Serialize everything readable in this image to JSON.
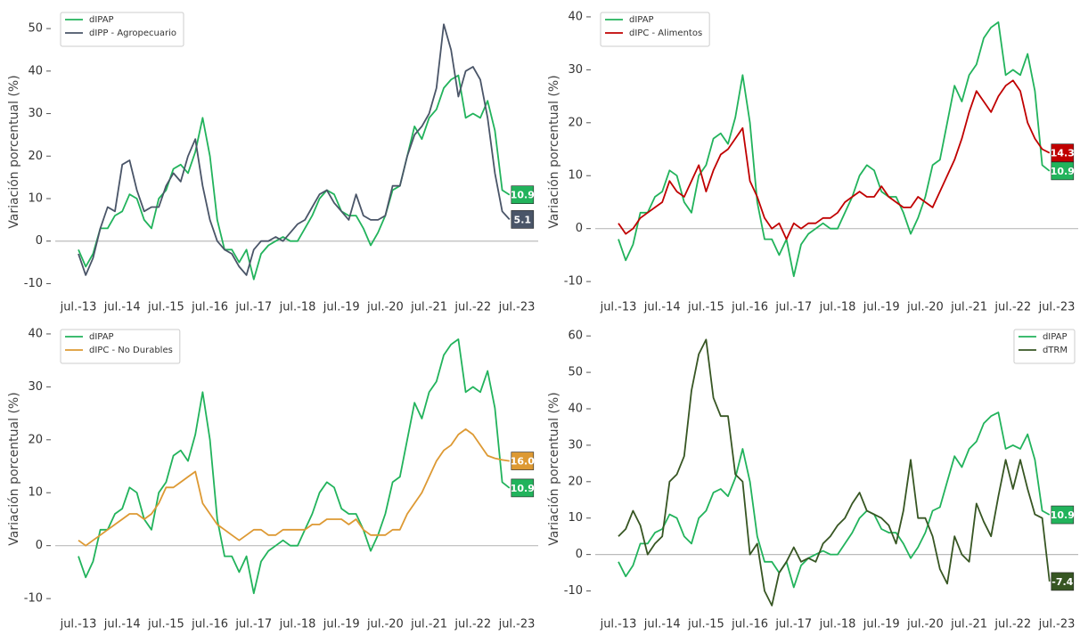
{
  "chart_data": [
    {
      "type": "line",
      "y_label": "Variación porcentual (%)",
      "legend": "upper left",
      "categories": [
        "jul.-13",
        null,
        null,
        null,
        null,
        null,
        "jul.-14",
        null,
        null,
        null,
        null,
        null,
        "jul.-15",
        null,
        null,
        null,
        null,
        null,
        "jul.-16",
        null,
        null,
        null,
        null,
        null,
        "jul.-17",
        null,
        null,
        null,
        null,
        null,
        "jul.-18",
        null,
        null,
        null,
        null,
        null,
        "jul.-19",
        null,
        null,
        null,
        null,
        null,
        "jul.-20",
        null,
        null,
        null,
        null,
        null,
        "jul.-21",
        null,
        null,
        null,
        null,
        null,
        "jul.-22",
        null,
        null,
        null,
        null,
        null,
        "jul.-23"
      ],
      "ylim": [
        -12,
        54
      ],
      "yticks": [
        -10,
        0,
        10,
        20,
        30,
        40,
        50
      ],
      "series": [
        {
          "name": "dIPAP",
          "color": "#22b35c",
          "end_label": "10.9",
          "values": [
            -2,
            -6,
            -3,
            3,
            3,
            6,
            7,
            11,
            10,
            5,
            3,
            10,
            12,
            17,
            18,
            16,
            21,
            29,
            20,
            5,
            -2,
            -2,
            -5,
            -2,
            -9,
            -3,
            -1,
            0,
            1,
            0,
            0,
            3,
            6,
            10,
            12,
            11,
            7,
            6,
            6,
            3,
            -1,
            2,
            6,
            12,
            13,
            20,
            27,
            24,
            29,
            31,
            36,
            38,
            39,
            29,
            30,
            29,
            33,
            26,
            12,
            10.9,
            null
          ]
        },
        {
          "name": "dIPP - Agropecuario",
          "color": "#4a5568",
          "end_label": "5.1",
          "values": [
            -3,
            -8,
            -4,
            3,
            8,
            7,
            18,
            19,
            12,
            7,
            8,
            8,
            13,
            16,
            14,
            20,
            24,
            13,
            5,
            0,
            -2,
            -3,
            -6,
            -8,
            -2,
            0,
            0,
            1,
            0,
            2,
            4,
            5,
            8,
            11,
            12,
            9,
            7,
            5,
            11,
            6,
            5,
            5,
            6,
            13,
            13,
            20,
            25,
            27,
            30,
            36,
            51,
            45,
            34,
            40,
            41,
            38,
            29,
            16,
            7,
            5.1,
            null
          ]
        }
      ]
    },
    {
      "type": "line",
      "y_label": "Variación porcentual (%)",
      "legend": "upper left",
      "categories": [
        "jul.-13",
        null,
        null,
        null,
        null,
        null,
        "jul.-14",
        null,
        null,
        null,
        null,
        null,
        "jul.-15",
        null,
        null,
        null,
        null,
        null,
        "jul.-16",
        null,
        null,
        null,
        null,
        null,
        "jul.-17",
        null,
        null,
        null,
        null,
        null,
        "jul.-18",
        null,
        null,
        null,
        null,
        null,
        "jul.-19",
        null,
        null,
        null,
        null,
        null,
        "jul.-20",
        null,
        null,
        null,
        null,
        null,
        "jul.-21",
        null,
        null,
        null,
        null,
        null,
        "jul.-22",
        null,
        null,
        null,
        null,
        null,
        "jul.-23"
      ],
      "ylim": [
        -12,
        41
      ],
      "yticks": [
        -10,
        0,
        10,
        20,
        30,
        40
      ],
      "series": [
        {
          "name": "dIPAP",
          "color": "#22b35c",
          "end_label": "10.9",
          "values": [
            -2,
            -6,
            -3,
            3,
            3,
            6,
            7,
            11,
            10,
            5,
            3,
            10,
            12,
            17,
            18,
            16,
            21,
            29,
            20,
            5,
            -2,
            -2,
            -5,
            -2,
            -9,
            -3,
            -1,
            0,
            1,
            0,
            0,
            3,
            6,
            10,
            12,
            11,
            7,
            6,
            6,
            3,
            -1,
            2,
            6,
            12,
            13,
            20,
            27,
            24,
            29,
            31,
            36,
            38,
            39,
            29,
            30,
            29,
            33,
            26,
            12,
            10.9,
            null
          ]
        },
        {
          "name": "dIPC - Alimentos",
          "color": "#c00000",
          "end_label": "14.3",
          "values": [
            1,
            -1,
            0,
            2,
            3,
            4,
            5,
            9,
            7,
            6,
            9,
            12,
            7,
            11,
            14,
            15,
            17,
            19,
            9,
            6,
            2,
            0,
            1,
            -2,
            1,
            0,
            1,
            1,
            2,
            2,
            3,
            5,
            6,
            7,
            6,
            6,
            8,
            6,
            5,
            4,
            4,
            6,
            5,
            4,
            7,
            10,
            13,
            17,
            22,
            26,
            24,
            22,
            25,
            27,
            28,
            26,
            20,
            17,
            15,
            14.3,
            null
          ]
        }
      ]
    },
    {
      "type": "line",
      "y_label": "Variación porcentual (%)",
      "legend": "upper left",
      "categories": [
        "jul.-13",
        null,
        null,
        null,
        null,
        null,
        "jul.-14",
        null,
        null,
        null,
        null,
        null,
        "jul.-15",
        null,
        null,
        null,
        null,
        null,
        "jul.-16",
        null,
        null,
        null,
        null,
        null,
        "jul.-17",
        null,
        null,
        null,
        null,
        null,
        "jul.-18",
        null,
        null,
        null,
        null,
        null,
        "jul.-19",
        null,
        null,
        null,
        null,
        null,
        "jul.-20",
        null,
        null,
        null,
        null,
        null,
        "jul.-21",
        null,
        null,
        null,
        null,
        null,
        "jul.-22",
        null,
        null,
        null,
        null,
        null,
        "jul.-23"
      ],
      "ylim": [
        -12,
        41
      ],
      "yticks": [
        -10,
        0,
        10,
        20,
        30,
        40
      ],
      "series": [
        {
          "name": "dIPAP",
          "color": "#22b35c",
          "end_label": "10.9",
          "values": [
            -2,
            -6,
            -3,
            3,
            3,
            6,
            7,
            11,
            10,
            5,
            3,
            10,
            12,
            17,
            18,
            16,
            21,
            29,
            20,
            5,
            -2,
            -2,
            -5,
            -2,
            -9,
            -3,
            -1,
            0,
            1,
            0,
            0,
            3,
            6,
            10,
            12,
            11,
            7,
            6,
            6,
            3,
            -1,
            2,
            6,
            12,
            13,
            20,
            27,
            24,
            29,
            31,
            36,
            38,
            39,
            29,
            30,
            29,
            33,
            26,
            12,
            10.9,
            null
          ]
        },
        {
          "name": "dIPC - No Durables",
          "color": "#dd9933",
          "end_label": "16.0",
          "values": [
            1,
            0,
            1,
            2,
            3,
            4,
            5,
            6,
            6,
            5,
            6,
            8,
            11,
            11,
            12,
            13,
            14,
            8,
            6,
            4,
            3,
            2,
            1,
            2,
            3,
            3,
            2,
            2,
            3,
            3,
            3,
            3,
            4,
            4,
            5,
            5,
            5,
            4,
            5,
            3,
            2,
            2,
            2,
            3,
            3,
            6,
            8,
            10,
            13,
            16,
            18,
            19,
            21,
            22,
            21,
            19,
            17,
            16.5,
            16.2,
            16,
            null
          ]
        }
      ]
    },
    {
      "type": "line",
      "y_label": "Variación porcentual (%)",
      "legend": "upper right",
      "categories": [
        "jul.-13",
        null,
        null,
        null,
        null,
        null,
        "jul.-14",
        null,
        null,
        null,
        null,
        null,
        "jul.-15",
        null,
        null,
        null,
        null,
        null,
        "jul.-16",
        null,
        null,
        null,
        null,
        null,
        "jul.-17",
        null,
        null,
        null,
        null,
        null,
        "jul.-18",
        null,
        null,
        null,
        null,
        null,
        "jul.-19",
        null,
        null,
        null,
        null,
        null,
        "jul.-20",
        null,
        null,
        null,
        null,
        null,
        "jul.-21",
        null,
        null,
        null,
        null,
        null,
        "jul.-22",
        null,
        null,
        null,
        null,
        null,
        "jul.-23"
      ],
      "ylim": [
        -15,
        62
      ],
      "yticks": [
        -10,
        0,
        10,
        20,
        30,
        40,
        50,
        60
      ],
      "series": [
        {
          "name": "dIPAP",
          "color": "#22b35c",
          "end_label": "10.9",
          "values": [
            -2,
            -6,
            -3,
            3,
            3,
            6,
            7,
            11,
            10,
            5,
            3,
            10,
            12,
            17,
            18,
            16,
            21,
            29,
            20,
            5,
            -2,
            -2,
            -5,
            -2,
            -9,
            -3,
            -1,
            0,
            1,
            0,
            0,
            3,
            6,
            10,
            12,
            11,
            7,
            6,
            6,
            3,
            -1,
            2,
            6,
            12,
            13,
            20,
            27,
            24,
            29,
            31,
            36,
            38,
            39,
            29,
            30,
            29,
            33,
            26,
            12,
            10.9,
            null
          ]
        },
        {
          "name": "dTRM",
          "color": "#375623",
          "end_label": "-7.4",
          "values": [
            5,
            7,
            12,
            8,
            0,
            3,
            5,
            20,
            22,
            27,
            45,
            55,
            59,
            43,
            38,
            38,
            22,
            20,
            0,
            3,
            -10,
            -14,
            -5,
            -2,
            2,
            -2,
            -1,
            -2,
            3,
            5,
            8,
            10,
            14,
            17,
            12,
            11,
            10,
            8,
            3,
            12,
            26,
            10,
            10,
            5,
            -4,
            -8,
            5,
            0,
            -2,
            14,
            9,
            5,
            16,
            26,
            18,
            26,
            18,
            11,
            10,
            -7.4,
            null
          ]
        }
      ]
    }
  ]
}
